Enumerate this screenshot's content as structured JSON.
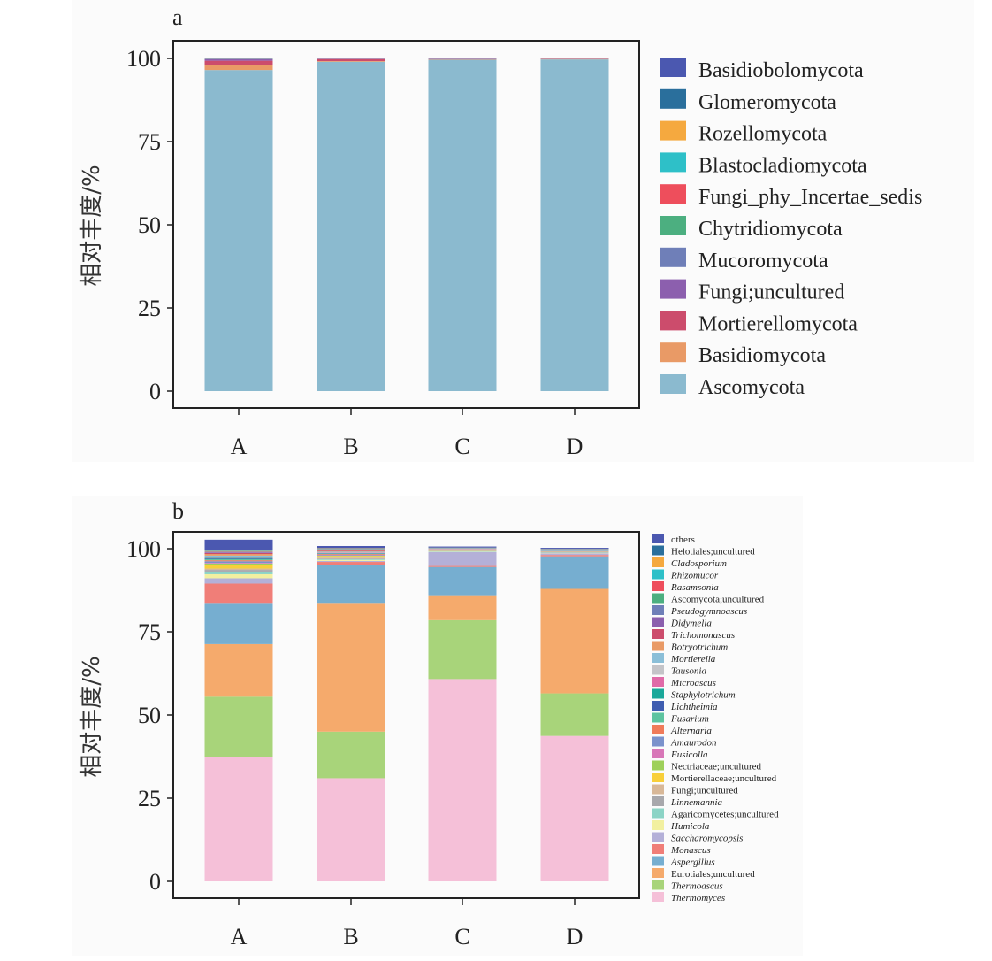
{
  "chart_data": [
    {
      "type": "bar",
      "stacked": true,
      "panel_label": "a",
      "title": "",
      "xlabel": "",
      "ylabel": "相对丰度/%",
      "ylim": [
        0,
        100
      ],
      "yticks": [
        "0",
        "25",
        "50",
        "75",
        "100"
      ],
      "categories": [
        "A",
        "B",
        "C",
        "D"
      ],
      "legend_position": "right",
      "legend": [
        "Basidiobolomycota",
        "Glomeromycota",
        "Rozellomycota",
        "Blastocladiomycota",
        "Fungi_phy_Incertae_sedis",
        "Chytridiomycota",
        "Mucoromycota",
        "Fungi;uncultured",
        "Mortierellomycota",
        "Basidiomycota",
        "Ascomycota"
      ],
      "colors": {
        "Basidiobolomycota": "#4b58b0",
        "Glomeromycota": "#2a6f9c",
        "Rozellomycota": "#f5a93f",
        "Blastocladiomycota": "#2ec0c8",
        "Fungi_phy_Incertae_sedis": "#ee4e5c",
        "Chytridiomycota": "#4caf80",
        "Mucoromycota": "#6f7fb8",
        "Fungi;uncultured": "#8c5fae",
        "Mortierellomycota": "#cc4c6c",
        "Basidiomycota": "#e99a66",
        "Ascomycota": "#8bbacf"
      },
      "series": [
        {
          "name": "Ascomycota",
          "values": [
            96.5,
            99.0,
            99.6,
            99.7
          ]
        },
        {
          "name": "Basidiomycota",
          "values": [
            1.5,
            0.2,
            0.1,
            0.1
          ]
        },
        {
          "name": "Mortierellomycota",
          "values": [
            1.3,
            0.6,
            0.1,
            0.1
          ]
        },
        {
          "name": "Fungi;uncultured",
          "values": [
            0.5,
            0.1,
            0.1,
            0.05
          ]
        },
        {
          "name": "Mucoromycota",
          "values": [
            0.1,
            0.05,
            0.05,
            0.02
          ]
        },
        {
          "name": "Chytridiomycota",
          "values": [
            0.05,
            0.02,
            0.02,
            0.01
          ]
        },
        {
          "name": "Fungi_phy_Incertae_sedis",
          "values": [
            0.02,
            0.02,
            0.01,
            0.01
          ]
        },
        {
          "name": "Blastocladiomycota",
          "values": [
            0.01,
            0.005,
            0.005,
            0.005
          ]
        },
        {
          "name": "Rozellomycota",
          "values": [
            0.01,
            0.005,
            0.005,
            0.005
          ]
        },
        {
          "name": "Glomeromycota",
          "values": [
            0.005,
            0.005,
            0.005,
            0.005
          ]
        },
        {
          "name": "Basidiobolomycota",
          "values": [
            0.005,
            0.005,
            0.005,
            0.005
          ]
        }
      ]
    },
    {
      "type": "bar",
      "stacked": true,
      "panel_label": "b",
      "title": "",
      "xlabel": "",
      "ylabel": "相对丰度/%",
      "ylim": [
        0,
        100
      ],
      "yticks": [
        "0",
        "25",
        "50",
        "75",
        "100"
      ],
      "categories": [
        "A",
        "B",
        "C",
        "D"
      ],
      "legend_position": "right",
      "legend": [
        "others",
        "Helotiales;uncultured",
        "Cladosporium",
        "Rhizomucor",
        "Rasamsonia",
        "Ascomycota;uncultured",
        "Pseudogymnoascus",
        "Didymella",
        "Trichomonascus",
        "Botryotrichum",
        "Mortierella",
        "Tausonia",
        "Microascus",
        "Staphylotrichum",
        "Lichtheimia",
        "Fusarium",
        "Alternaria",
        "Amaurodon",
        "Fusicolla",
        "Nectriaceae;uncultured",
        "Mortierellaceae;uncultured",
        "Fungi;uncultured",
        "Linnemannia",
        "Agaricomycetes;uncultured",
        "Humicola",
        "Saccharomycopsis",
        "Monascus",
        "Aspergillus",
        "Eurotiales;uncultured",
        "Thermoascus",
        "Thermomyces"
      ],
      "italic": [
        "Cladosporium",
        "Rhizomucor",
        "Rasamsonia",
        "Pseudogymnoascus",
        "Didymella",
        "Trichomonascus",
        "Botryotrichum",
        "Mortierella",
        "Tausonia",
        "Microascus",
        "Staphylotrichum",
        "Lichtheimia",
        "Fusarium",
        "Alternaria",
        "Amaurodon",
        "Fusicolla",
        "Linnemannia",
        "Humicola",
        "Saccharomycopsis",
        "Monascus",
        "Aspergillus",
        "Thermoascus",
        "Thermomyces"
      ],
      "colors": {
        "others": "#4b58b0",
        "Helotiales;uncultured": "#2a6f9c",
        "Cladosporium": "#f5a93f",
        "Rhizomucor": "#2ec0c8",
        "Rasamsonia": "#ee4e5c",
        "Ascomycota;uncultured": "#4caf80",
        "Pseudogymnoascus": "#6f7fb8",
        "Didymella": "#8c5fae",
        "Trichomonascus": "#cc4c6c",
        "Botryotrichum": "#e99a66",
        "Mortierella": "#8bbfd8",
        "Tausonia": "#c4c4c8",
        "Microascus": "#e06aa8",
        "Staphylotrichum": "#1aa89a",
        "Lichtheimia": "#3f5db0",
        "Fusarium": "#5ec4a0",
        "Alternaria": "#f07b5a",
        "Amaurodon": "#7b92cc",
        "Fusicolla": "#d877b8",
        "Nectriaceae;uncultured": "#9ed05a",
        "Mortierellaceae;uncultured": "#f8cf3a",
        "Fungi;uncultured": "#d8b898",
        "Linnemannia": "#a8a8ac",
        "Agaricomycetes;uncultured": "#8cd4c6",
        "Humicola": "#f2f0a0",
        "Saccharomycopsis": "#b4b0d8",
        "Monascus": "#f07e78",
        "Aspergillus": "#76aed0",
        "Eurotiales;uncultured": "#f5aa6c",
        "Thermoascus": "#a8d47a",
        "Thermomyces": "#f5c0d8"
      },
      "series": [
        {
          "name": "Thermomyces",
          "values": [
            37.5,
            31.0,
            60.8,
            43.7
          ]
        },
        {
          "name": "Thermoascus",
          "values": [
            18.0,
            14.0,
            17.7,
            12.8
          ]
        },
        {
          "name": "Eurotiales;uncultured",
          "values": [
            15.8,
            38.7,
            7.5,
            31.4
          ]
        },
        {
          "name": "Aspergillus",
          "values": [
            12.4,
            11.5,
            8.5,
            9.8
          ]
        },
        {
          "name": "Monascus",
          "values": [
            5.8,
            0.8,
            0.3,
            0.4
          ]
        },
        {
          "name": "Saccharomycopsis",
          "values": [
            1.6,
            0.3,
            4.2,
            0.5
          ]
        },
        {
          "name": "Humicola",
          "values": [
            1.2,
            0.3,
            0.1,
            0.1
          ]
        },
        {
          "name": "Agaricomycetes;uncultured",
          "values": [
            0.8,
            0.2,
            0.1,
            0.1
          ]
        },
        {
          "name": "Linnemannia",
          "values": [
            0.5,
            0.2,
            0.1,
            0.1
          ]
        },
        {
          "name": "Fungi;uncultured",
          "values": [
            0.4,
            0.3,
            0.05,
            0.05
          ]
        },
        {
          "name": "Mortierellaceae;uncultured",
          "values": [
            1.2,
            0.5,
            0.05,
            0.05
          ]
        },
        {
          "name": "Nectriaceae;uncultured",
          "values": [
            0.3,
            0.1,
            0.05,
            0.05
          ]
        },
        {
          "name": "Fusicolla",
          "values": [
            0.2,
            0.1,
            0.05,
            0.05
          ]
        },
        {
          "name": "Amaurodon",
          "values": [
            0.5,
            0.2,
            0.05,
            0.05
          ]
        },
        {
          "name": "Alternaria",
          "values": [
            0.3,
            0.2,
            0.05,
            0.05
          ]
        },
        {
          "name": "Fusarium",
          "values": [
            0.3,
            0.1,
            0.05,
            0.05
          ]
        },
        {
          "name": "Lichtheimia",
          "values": [
            0.2,
            0.1,
            0.05,
            0.05
          ]
        },
        {
          "name": "Staphylotrichum",
          "values": [
            0.2,
            0.1,
            0.05,
            0.05
          ]
        },
        {
          "name": "Microascus",
          "values": [
            0.1,
            0.1,
            0.05,
            0.05
          ]
        },
        {
          "name": "Tausonia",
          "values": [
            0.3,
            0.1,
            0.05,
            0.05
          ]
        },
        {
          "name": "Mortierella",
          "values": [
            0.3,
            0.2,
            0.05,
            0.05
          ]
        },
        {
          "name": "Botryotrichum",
          "values": [
            0.5,
            0.2,
            0.05,
            0.05
          ]
        },
        {
          "name": "Trichomonascus",
          "values": [
            0.3,
            0.2,
            0.05,
            0.05
          ]
        },
        {
          "name": "Didymella",
          "values": [
            0.2,
            0.1,
            0.05,
            0.05
          ]
        },
        {
          "name": "Pseudogymnoascus",
          "values": [
            0.1,
            0.1,
            0.05,
            0.05
          ]
        },
        {
          "name": "Ascomycota;uncultured",
          "values": [
            0.1,
            0.1,
            0.05,
            0.05
          ]
        },
        {
          "name": "Rasamsonia",
          "values": [
            0.1,
            0.1,
            0.05,
            0.05
          ]
        },
        {
          "name": "Rhizomucor",
          "values": [
            0.1,
            0.1,
            0.05,
            0.05
          ]
        },
        {
          "name": "Cladosporium",
          "values": [
            0.1,
            0.1,
            0.05,
            0.05
          ]
        },
        {
          "name": "Helotiales;uncultured",
          "values": [
            0.1,
            0.1,
            0.05,
            0.05
          ]
        },
        {
          "name": "others",
          "values": [
            3.2,
            0.6,
            0.3,
            0.3
          ]
        }
      ]
    }
  ]
}
